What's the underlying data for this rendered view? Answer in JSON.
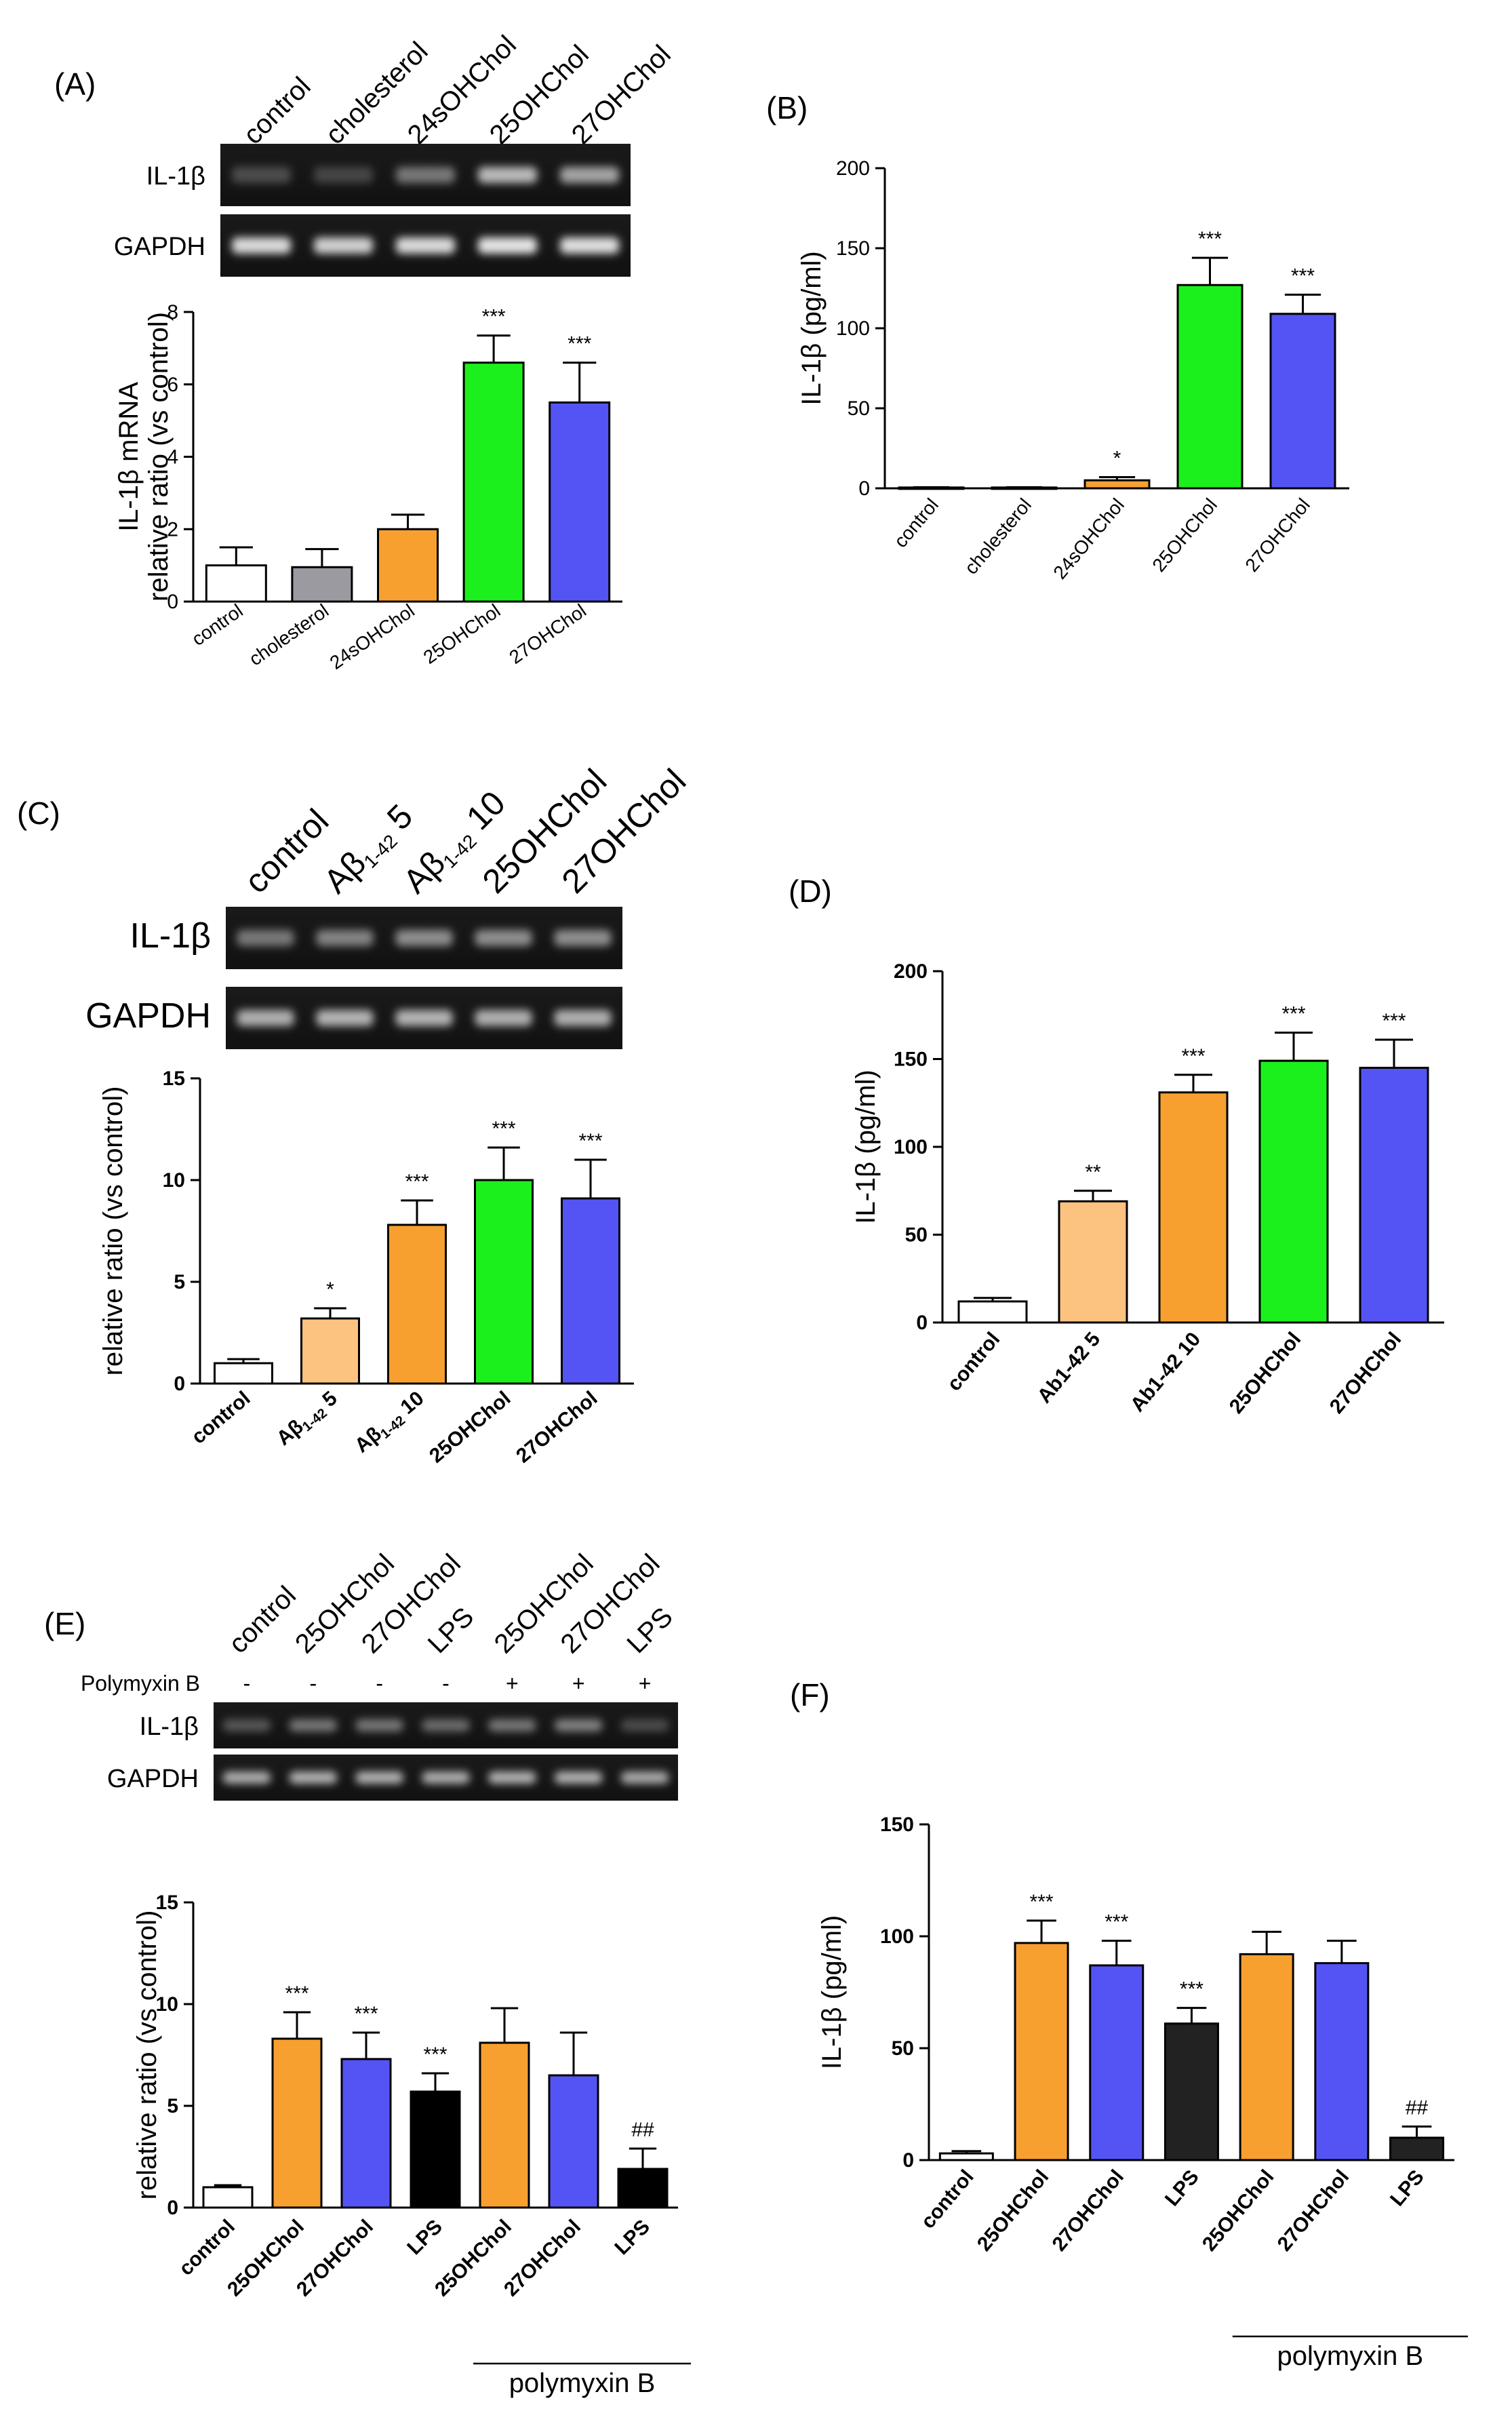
{
  "colors": {
    "control": "#ffffff",
    "cholesterol": "#9a9aa0",
    "oh24": "#f7a030",
    "abeta5": "#fbc280",
    "oh25": "#1cf01c",
    "oh27": "#5454f4",
    "lps": "#222222",
    "lps_black": "#000000"
  },
  "gels": {
    "A": {
      "lanes": [
        "control",
        "cholesterol",
        "24sOHChol",
        "25OHChol",
        "27OHChol"
      ],
      "rows": [
        "IL-1β",
        "GAPDH"
      ]
    },
    "C": {
      "lanes": [
        "control",
        "Aβ1-42 5",
        "Aβ1-42 10",
        "25OHChol",
        "27OHChol"
      ],
      "rows": [
        "IL-1β",
        "GAPDH"
      ]
    },
    "E": {
      "lanes": [
        "control",
        "25OHChol",
        "27OHChol",
        "LPS",
        "25OHChol",
        "27OHChol",
        "LPS"
      ],
      "row_label": "Polymyxin B",
      "signs": [
        "-",
        "-",
        "-",
        "-",
        "+",
        "+",
        "+"
      ],
      "rows": [
        "IL-1β",
        "GAPDH"
      ]
    }
  },
  "chart_data": [
    {
      "panel": "(A)",
      "type": "bar",
      "ylabel": "IL-1β mRNA\nrelative ratio (vs control)",
      "ylim": [
        0,
        8
      ],
      "yticks": [
        "0",
        "2",
        "4",
        "6",
        "8"
      ],
      "categories": [
        "control",
        "cholesterol",
        "24sOHChol",
        "25OHChol",
        "27OHChol"
      ],
      "values": [
        1.0,
        0.95,
        2.0,
        6.6,
        5.5
      ],
      "errors": [
        0.5,
        0.5,
        0.4,
        0.75,
        1.1
      ],
      "significance": [
        "",
        "",
        "",
        "***",
        "***"
      ],
      "bar_colors": [
        "control",
        "cholesterol",
        "oh24",
        "oh25",
        "oh27"
      ]
    },
    {
      "panel": "(B)",
      "type": "bar",
      "ylabel": "IL-1β (pg/ml)",
      "ylim": [
        0,
        200
      ],
      "yticks": [
        "0",
        "50",
        "100",
        "150",
        "200"
      ],
      "categories": [
        "control",
        "cholesterol",
        "24sOHChol",
        "25OHChol",
        "27OHChol"
      ],
      "values": [
        0.5,
        0.5,
        5,
        127,
        109
      ],
      "errors": [
        0.2,
        0.2,
        2,
        17,
        12
      ],
      "significance": [
        "",
        "",
        "*",
        "***",
        "***"
      ],
      "bar_colors": [
        "control",
        "cholesterol",
        "oh24",
        "oh25",
        "oh27"
      ]
    },
    {
      "panel": "(C)",
      "type": "bar",
      "ylabel": "relative ratio (vs control)",
      "ylim": [
        0,
        15
      ],
      "yticks": [
        "0",
        "5",
        "10",
        "15"
      ],
      "categories": [
        "control",
        "Aβ1-42 5",
        "Aβ1-42 10",
        "25OHChol",
        "27OHChol"
      ],
      "values": [
        1.0,
        3.2,
        7.8,
        10.0,
        9.1
      ],
      "errors": [
        0.2,
        0.5,
        1.2,
        1.6,
        1.9
      ],
      "significance": [
        "",
        "*",
        "***",
        "***",
        "***"
      ],
      "bar_colors": [
        "control",
        "abeta5",
        "oh24",
        "oh25",
        "oh27"
      ]
    },
    {
      "panel": "(D)",
      "type": "bar",
      "ylabel": "IL-1β (pg/ml)",
      "ylim": [
        0,
        200
      ],
      "yticks": [
        "0",
        "50",
        "100",
        "150",
        "200"
      ],
      "categories": [
        "control",
        "Ab1-42 5",
        "Ab1-42 10",
        "25OHChol",
        "27OHChol"
      ],
      "values": [
        12,
        69,
        131,
        149,
        145
      ],
      "errors": [
        2,
        6,
        10,
        16,
        16
      ],
      "significance": [
        "",
        "**",
        "***",
        "***",
        "***"
      ],
      "bar_colors": [
        "control",
        "abeta5",
        "oh24",
        "oh25",
        "oh27"
      ]
    },
    {
      "panel": "(E)",
      "type": "bar",
      "ylabel": "relative ratio (vs control)",
      "ylim": [
        0,
        15
      ],
      "yticks": [
        "0",
        "5",
        "10",
        "15"
      ],
      "categories": [
        "control",
        "25OHChol",
        "27OHChol",
        "LPS",
        "25OHChol",
        "27OHChol",
        "LPS"
      ],
      "values": [
        1.0,
        8.3,
        7.3,
        5.7,
        8.1,
        6.5,
        1.9
      ],
      "errors": [
        0.1,
        1.3,
        1.3,
        0.9,
        1.7,
        2.1,
        1.0
      ],
      "significance": [
        "",
        "***",
        "***",
        "***",
        "",
        "",
        "##"
      ],
      "bar_colors": [
        "control",
        "oh24",
        "oh27",
        "lps_black",
        "oh24",
        "oh27",
        "lps_black"
      ],
      "group_label": "polymyxin B"
    },
    {
      "panel": "(F)",
      "type": "bar",
      "ylabel": "IL-1β (pg/ml)",
      "ylim": [
        0,
        150
      ],
      "yticks": [
        "0",
        "50",
        "100",
        "150"
      ],
      "categories": [
        "control",
        "25OHChol",
        "27OHChol",
        "LPS",
        "25OHChol",
        "27OHChol",
        "LPS"
      ],
      "values": [
        3,
        97,
        87,
        61,
        92,
        88,
        10
      ],
      "errors": [
        1,
        10,
        11,
        7,
        10,
        10,
        5
      ],
      "significance": [
        "",
        "***",
        "***",
        "***",
        "",
        "",
        "##"
      ],
      "bar_colors": [
        "control",
        "oh24",
        "oh27",
        "lps",
        "oh24",
        "oh27",
        "lps"
      ],
      "group_label": "polymyxin B"
    }
  ]
}
